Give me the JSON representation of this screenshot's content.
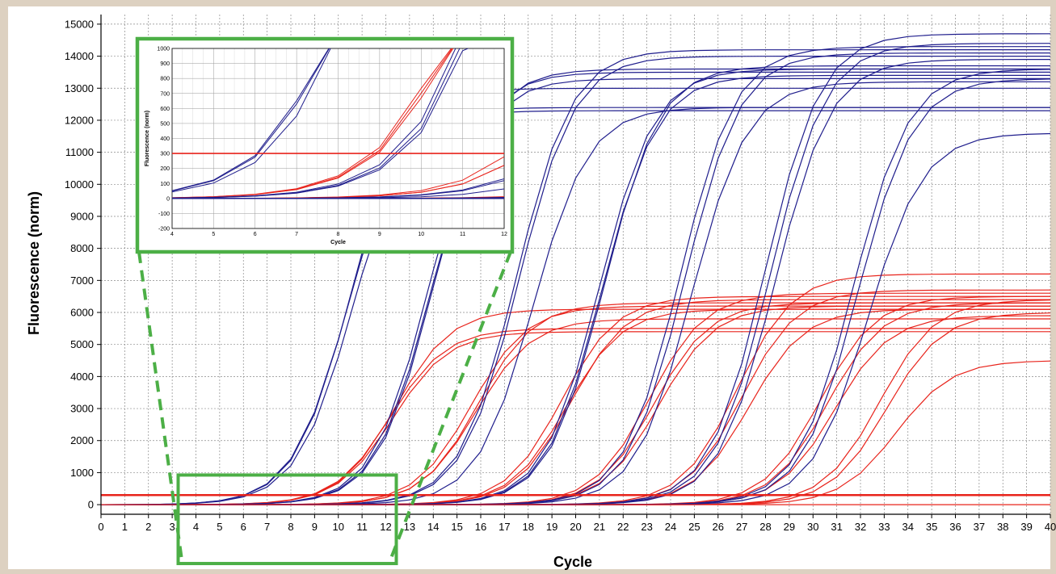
{
  "chart_data": [
    {
      "type": "line",
      "title": "",
      "xlabel": "Cycle",
      "ylabel": "Fluorescence (norm)",
      "xlim": [
        0,
        40
      ],
      "ylim": [
        -300,
        15300
      ],
      "x_ticks": [
        0,
        1,
        2,
        3,
        4,
        5,
        6,
        7,
        8,
        9,
        10,
        11,
        12,
        13,
        14,
        15,
        16,
        17,
        18,
        19,
        20,
        21,
        22,
        23,
        24,
        25,
        26,
        27,
        28,
        29,
        30,
        31,
        32,
        33,
        34,
        35,
        36,
        37,
        38,
        39,
        40
      ],
      "y_ticks": [
        0,
        1000,
        2000,
        3000,
        4000,
        5000,
        6000,
        7000,
        8000,
        9000,
        10000,
        11000,
        12000,
        13000,
        14000,
        15000
      ],
      "grid": true,
      "threshold": {
        "color": "#e8231b",
        "value": 300
      },
      "curve_model": "sigmoid amplification curves (half-max cycle, plateau)",
      "series": [
        {
          "group": "blue",
          "color": "#1f1d8c",
          "curves": [
            {
              "half_max_cycle": 10.4,
              "plateau": 12400
            },
            {
              "half_max_cycle": 10.6,
              "plateau": 12300
            },
            {
              "half_max_cycle": 10.5,
              "plateau": 13000
            },
            {
              "half_max_cycle": 13.8,
              "plateau": 13500
            },
            {
              "half_max_cycle": 13.9,
              "plateau": 13300
            },
            {
              "half_max_cycle": 14.0,
              "plateau": 13600
            },
            {
              "half_max_cycle": 17.5,
              "plateau": 14200
            },
            {
              "half_max_cycle": 17.6,
              "plateau": 14000
            },
            {
              "half_max_cycle": 18.2,
              "plateau": 12400
            },
            {
              "half_max_cycle": 21.0,
              "plateau": 13600
            },
            {
              "half_max_cycle": 21.1,
              "plateau": 13400
            },
            {
              "half_max_cycle": 21.2,
              "plateau": 13700
            },
            {
              "half_max_cycle": 24.4,
              "plateau": 14300
            },
            {
              "half_max_cycle": 24.6,
              "plateau": 14100
            },
            {
              "half_max_cycle": 24.9,
              "plateau": 13200
            },
            {
              "half_max_cycle": 28.0,
              "plateau": 14700
            },
            {
              "half_max_cycle": 28.2,
              "plateau": 14400
            },
            {
              "half_max_cycle": 28.4,
              "plateau": 13900
            },
            {
              "half_max_cycle": 31.7,
              "plateau": 13600
            },
            {
              "half_max_cycle": 31.9,
              "plateau": 13300
            },
            {
              "half_max_cycle": 32.3,
              "plateau": 11600
            }
          ]
        },
        {
          "group": "red",
          "color": "#e8231b",
          "curves": [
            {
              "half_max_cycle": 12.2,
              "plateau": 5500
            },
            {
              "half_max_cycle": 12.3,
              "plateau": 5400
            },
            {
              "half_max_cycle": 12.4,
              "plateau": 6100
            },
            {
              "half_max_cycle": 15.6,
              "plateau": 6200
            },
            {
              "half_max_cycle": 15.8,
              "plateau": 5800
            },
            {
              "half_max_cycle": 15.9,
              "plateau": 6300
            },
            {
              "half_max_cycle": 19.4,
              "plateau": 6500
            },
            {
              "half_max_cycle": 19.6,
              "plateau": 6100
            },
            {
              "half_max_cycle": 19.8,
              "plateau": 6400
            },
            {
              "half_max_cycle": 23.1,
              "plateau": 6600
            },
            {
              "half_max_cycle": 23.3,
              "plateau": 6300
            },
            {
              "half_max_cycle": 23.5,
              "plateau": 6200
            },
            {
              "half_max_cycle": 26.8,
              "plateau": 7200
            },
            {
              "half_max_cycle": 27.0,
              "plateau": 6700
            },
            {
              "half_max_cycle": 27.3,
              "plateau": 6100
            },
            {
              "half_max_cycle": 30.3,
              "plateau": 6500
            },
            {
              "half_max_cycle": 30.6,
              "plateau": 6300
            },
            {
              "half_max_cycle": 30.9,
              "plateau": 5900
            },
            {
              "half_max_cycle": 32.8,
              "plateau": 6400
            },
            {
              "half_max_cycle": 33.1,
              "plateau": 6000
            },
            {
              "half_max_cycle": 33.5,
              "plateau": 4500
            }
          ]
        }
      ],
      "zoom_region": {
        "x": [
          4,
          12
        ],
        "y": [
          -200,
          1000
        ],
        "color": "#4caf46"
      }
    },
    {
      "type": "line",
      "title": "",
      "xlabel": "Cycle",
      "ylabel": "Fluorescence (norm)",
      "xlim": [
        4,
        12
      ],
      "ylim": [
        -200,
        1000
      ],
      "x_ticks": [
        4,
        5,
        6,
        7,
        8,
        9,
        10,
        11,
        12
      ],
      "y_ticks": [
        -200,
        -100,
        0,
        100,
        200,
        300,
        400,
        500,
        600,
        700,
        800,
        900,
        1000
      ],
      "grid": true,
      "border_color": "#4caf46"
    }
  ]
}
